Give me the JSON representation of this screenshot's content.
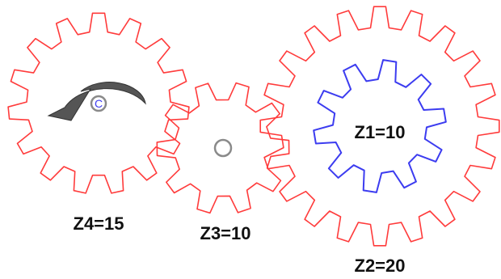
{
  "colors": {
    "gear": "#ff3b3b",
    "inner_gear": "#3c3cf0",
    "label": "#111111",
    "arrow": "#555555",
    "hub": "#8a8a8a"
  },
  "gears": {
    "z4": {
      "label": "Z4=15",
      "teeth": 15,
      "hub_letter": "C",
      "has_arrow": true
    },
    "z3": {
      "label": "Z3=10",
      "teeth": 10
    },
    "z2": {
      "label": "Z2=20",
      "teeth": 20
    },
    "z1": {
      "label": "Z1=10",
      "teeth": 10
    }
  },
  "arrow_icon": "counterclockwise-rotation-arrow-icon"
}
